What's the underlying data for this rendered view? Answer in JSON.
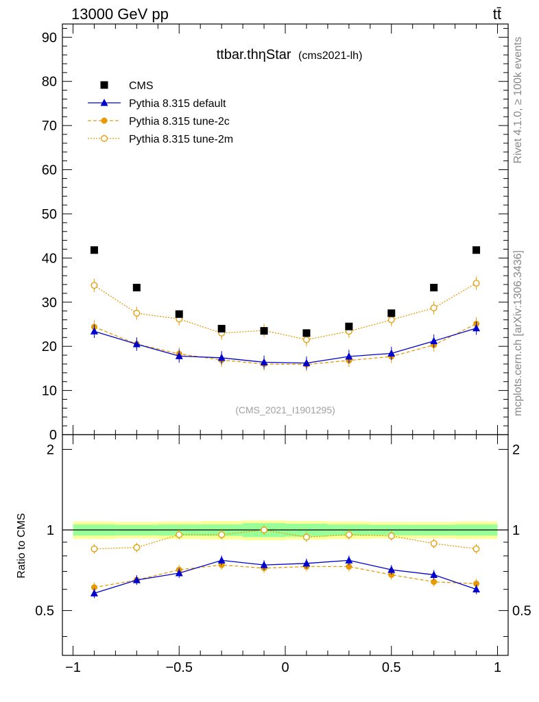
{
  "header": {
    "left": "13000 GeV pp",
    "right": "tt̄"
  },
  "side_labels": {
    "rivet": "Rivet 4.1.0, ≥ 100k events",
    "mcplots": "mcplots.cern.ch [arXiv:1306.3436]"
  },
  "chart_data": {
    "type": "scatter",
    "title": "ttbar.thηStar",
    "title_suffix": "(cms2021-lh)",
    "watermark": "(CMS_2021_I1901295)",
    "xlim": [
      -1.05,
      1.05
    ],
    "x_ticks": [
      -1,
      -0.5,
      0,
      0.5,
      1
    ],
    "x_tick_labels": [
      "−1",
      "−0.5",
      "0",
      "0.5",
      "1"
    ],
    "main": {
      "ylim": [
        0,
        93
      ],
      "y_ticks": [
        0,
        10,
        20,
        30,
        40,
        50,
        60,
        70,
        80,
        90
      ],
      "y_tick_labels": [
        "0",
        "10",
        "20",
        "30",
        "40",
        "50",
        "60",
        "70",
        "80",
        "90"
      ]
    },
    "ratio": {
      "ylabel": "Ratio to CMS",
      "ylim": [
        0.34,
        2.27
      ],
      "y_ticks": [
        0.5,
        1,
        2
      ],
      "y_tick_labels": [
        "0.5",
        "1",
        "2"
      ],
      "band_inner": [
        0.048,
        0.045,
        0.048,
        0.05,
        0.06,
        0.055,
        0.048,
        0.045,
        0.045,
        0.048
      ],
      "band_outer": [
        0.075,
        0.07,
        0.075,
        0.08,
        0.085,
        0.08,
        0.075,
        0.07,
        0.07,
        0.075
      ]
    },
    "x": [
      -0.9,
      -0.7,
      -0.5,
      -0.3,
      -0.1,
      0.1,
      0.3,
      0.5,
      0.7,
      0.9
    ],
    "x_edges": [
      -1,
      -0.8,
      -0.6,
      -0.4,
      -0.2,
      0,
      0.2,
      0.4,
      0.6,
      0.8,
      1
    ],
    "series": [
      {
        "name": "CMS",
        "color": "#000000",
        "marker": "square",
        "line": "none",
        "values": [
          41.8,
          33.3,
          27.3,
          24.0,
          23.5,
          23.0,
          24.5,
          27.5,
          33.3,
          41.8
        ],
        "ratio": [
          1,
          1,
          1,
          1,
          1,
          1,
          1,
          1,
          1,
          1
        ]
      },
      {
        "name": "Pythia 8.315 default",
        "color": "#0000cc",
        "marker": "triangle",
        "line": "solid",
        "values": [
          23.4,
          20.5,
          17.8,
          17.4,
          16.4,
          16.2,
          17.7,
          18.4,
          21.2,
          24.1
        ],
        "ratio": [
          0.58,
          0.65,
          0.69,
          0.77,
          0.74,
          0.75,
          0.77,
          0.71,
          0.68,
          0.6
        ]
      },
      {
        "name": "Pythia 8.315 tune-2c",
        "color": "#e69900",
        "marker": "filled-circle",
        "line": "dashed",
        "values": [
          24.4,
          20.5,
          18.3,
          16.9,
          16.0,
          15.9,
          16.8,
          17.7,
          20.3,
          25.1
        ],
        "ratio": [
          0.61,
          0.65,
          0.71,
          0.74,
          0.72,
          0.73,
          0.73,
          0.68,
          0.64,
          0.63
        ]
      },
      {
        "name": "Pythia 8.315 tune-2m",
        "color": "#e69900",
        "marker": "open-circle",
        "line": "dotted",
        "values": [
          33.8,
          27.5,
          26.2,
          23.0,
          23.6,
          21.5,
          23.4,
          26.0,
          28.7,
          34.3
        ],
        "ratio": [
          0.85,
          0.86,
          0.96,
          0.96,
          1.0,
          0.94,
          0.96,
          0.95,
          0.89,
          0.85
        ]
      }
    ]
  }
}
